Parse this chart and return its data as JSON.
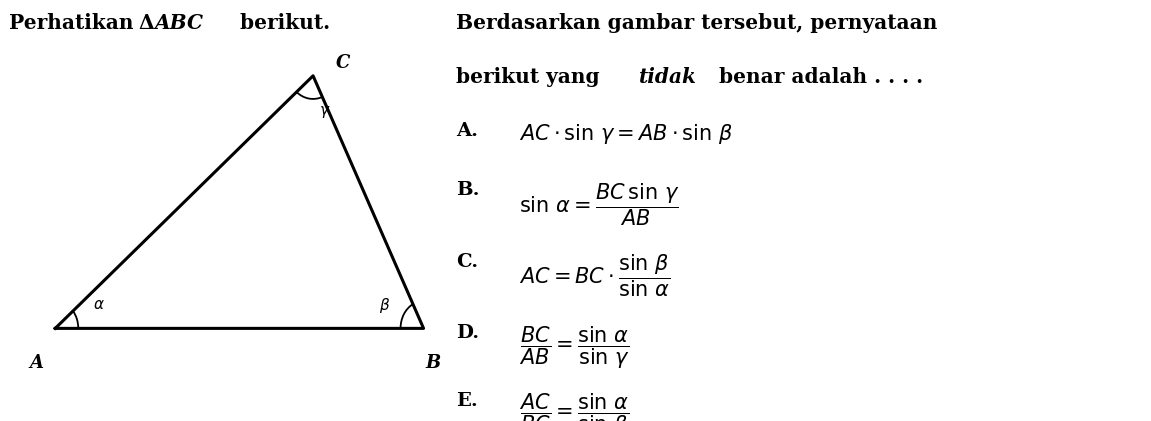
{
  "triangle": {
    "A": [
      0.12,
      0.22
    ],
    "B": [
      0.92,
      0.22
    ],
    "C": [
      0.68,
      0.82
    ]
  },
  "bg_color": "#ffffff",
  "text_color": "#000000",
  "line_color": "#000000",
  "font_size_title": 14.5,
  "font_size_options": 14
}
